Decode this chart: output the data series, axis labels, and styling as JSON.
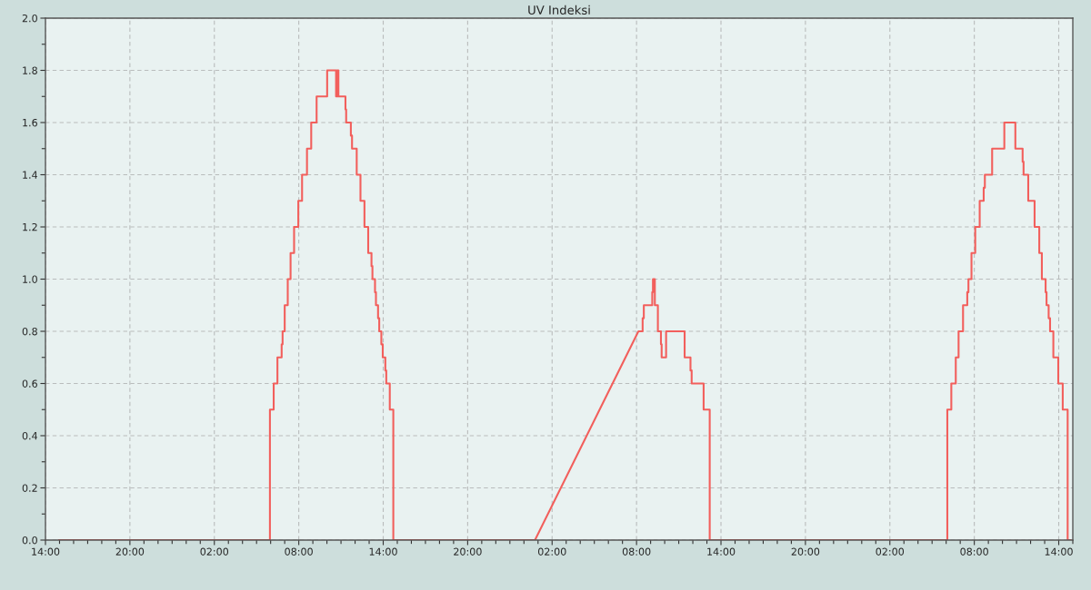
{
  "chart_data": {
    "type": "line",
    "title": "UV Indeksi",
    "xlim": [
      "2000-01-01T14:00",
      "2000-01-04T15:00"
    ],
    "xticks": [
      {
        "value": "2000-01-01T14:00",
        "label": "14:00"
      },
      {
        "value": "2000-01-01T15:00",
        "label": null
      },
      {
        "value": "2000-01-01T16:00",
        "label": null
      },
      {
        "value": "2000-01-01T17:00",
        "label": null
      },
      {
        "value": "2000-01-01T18:00",
        "label": null
      },
      {
        "value": "2000-01-01T19:00",
        "label": null
      },
      {
        "value": "2000-01-01T20:00",
        "label": "20:00"
      },
      {
        "value": "2000-01-01T21:00",
        "label": null
      },
      {
        "value": "2000-01-01T22:00",
        "label": null
      },
      {
        "value": "2000-01-01T23:00",
        "label": null
      },
      {
        "value": "2000-01-02T00:00",
        "label": null
      },
      {
        "value": "2000-01-02T01:00",
        "label": null
      },
      {
        "value": "2000-01-02T02:00",
        "label": "02:00"
      },
      {
        "value": "2000-01-02T03:00",
        "label": null
      },
      {
        "value": "2000-01-02T04:00",
        "label": null
      },
      {
        "value": "2000-01-02T05:00",
        "label": null
      },
      {
        "value": "2000-01-02T06:00",
        "label": null
      },
      {
        "value": "2000-01-02T07:00",
        "label": null
      },
      {
        "value": "2000-01-02T08:00",
        "label": "08:00"
      },
      {
        "value": "2000-01-02T09:00",
        "label": null
      },
      {
        "value": "2000-01-02T10:00",
        "label": null
      },
      {
        "value": "2000-01-02T11:00",
        "label": null
      },
      {
        "value": "2000-01-02T12:00",
        "label": null
      },
      {
        "value": "2000-01-02T13:00",
        "label": null
      },
      {
        "value": "2000-01-02T14:00",
        "label": "14:00"
      },
      {
        "value": "2000-01-02T15:00",
        "label": null
      },
      {
        "value": "2000-01-02T16:00",
        "label": null
      },
      {
        "value": "2000-01-02T17:00",
        "label": null
      },
      {
        "value": "2000-01-02T18:00",
        "label": null
      },
      {
        "value": "2000-01-02T19:00",
        "label": null
      },
      {
        "value": "2000-01-02T20:00",
        "label": "20:00"
      },
      {
        "value": "2000-01-02T21:00",
        "label": null
      },
      {
        "value": "2000-01-02T22:00",
        "label": null
      },
      {
        "value": "2000-01-02T23:00",
        "label": null
      },
      {
        "value": "2000-01-03T00:00",
        "label": null
      },
      {
        "value": "2000-01-03T01:00",
        "label": null
      },
      {
        "value": "2000-01-03T02:00",
        "label": "02:00"
      },
      {
        "value": "2000-01-03T03:00",
        "label": null
      },
      {
        "value": "2000-01-03T04:00",
        "label": null
      },
      {
        "value": "2000-01-03T05:00",
        "label": null
      },
      {
        "value": "2000-01-03T06:00",
        "label": null
      },
      {
        "value": "2000-01-03T07:00",
        "label": null
      },
      {
        "value": "2000-01-03T08:00",
        "label": "08:00"
      },
      {
        "value": "2000-01-03T09:00",
        "label": null
      },
      {
        "value": "2000-01-03T10:00",
        "label": null
      },
      {
        "value": "2000-01-03T11:00",
        "label": null
      },
      {
        "value": "2000-01-03T12:00",
        "label": null
      },
      {
        "value": "2000-01-03T13:00",
        "label": null
      },
      {
        "value": "2000-01-03T14:00",
        "label": "14:00"
      },
      {
        "value": "2000-01-03T15:00",
        "label": null
      },
      {
        "value": "2000-01-03T16:00",
        "label": null
      },
      {
        "value": "2000-01-03T17:00",
        "label": null
      },
      {
        "value": "2000-01-03T18:00",
        "label": null
      },
      {
        "value": "2000-01-03T19:00",
        "label": null
      },
      {
        "value": "2000-01-03T20:00",
        "label": "20:00"
      },
      {
        "value": "2000-01-03T21:00",
        "label": null
      },
      {
        "value": "2000-01-03T22:00",
        "label": null
      },
      {
        "value": "2000-01-03T23:00",
        "label": null
      },
      {
        "value": "2000-01-04T00:00",
        "label": null
      },
      {
        "value": "2000-01-04T01:00",
        "label": null
      },
      {
        "value": "2000-01-04T02:00",
        "label": "02:00"
      },
      {
        "value": "2000-01-04T03:00",
        "label": null
      },
      {
        "value": "2000-01-04T04:00",
        "label": null
      },
      {
        "value": "2000-01-04T05:00",
        "label": null
      },
      {
        "value": "2000-01-04T06:00",
        "label": null
      },
      {
        "value": "2000-01-04T07:00",
        "label": null
      },
      {
        "value": "2000-01-04T08:00",
        "label": "08:00"
      },
      {
        "value": "2000-01-04T09:00",
        "label": null
      },
      {
        "value": "2000-01-04T10:00",
        "label": null
      },
      {
        "value": "2000-01-04T11:00",
        "label": null
      },
      {
        "value": "2000-01-04T12:00",
        "label": null
      },
      {
        "value": "2000-01-04T13:00",
        "label": null
      },
      {
        "value": "2000-01-04T14:00",
        "label": "14:00"
      },
      {
        "value": "2000-01-04T15:00",
        "label": null
      }
    ],
    "ylim": [
      0,
      2
    ],
    "yticks": [
      {
        "value": 0,
        "label": "0.0"
      },
      {
        "value": 0.1,
        "label": null
      },
      0.2,
      {
        "value": 0.3,
        "label": null
      },
      0.4,
      {
        "value": 0.5,
        "label": null
      },
      0.6,
      {
        "value": 0.7,
        "label": null
      },
      0.8,
      {
        "value": 0.9,
        "label": null
      },
      {
        "value": 1,
        "label": "1.0"
      },
      {
        "value": 1.1,
        "label": null
      },
      1.2,
      {
        "value": 1.3,
        "label": null
      },
      1.4,
      {
        "value": 1.5,
        "label": null
      },
      1.6,
      {
        "value": 1.7,
        "label": null
      },
      1.8,
      {
        "value": 1.9,
        "label": null
      },
      {
        "value": 2,
        "label": "2.0"
      }
    ],
    "grid": true,
    "line_style": "solid",
    "series": [
      {
        "color": "#f25f5c",
        "x": [
          "2000-01-01T14:57",
          "2000-01-02T05:57",
          "2000-01-02T05:57",
          "2000-01-02T06:13",
          "2000-01-02T06:13",
          "2000-01-02T06:29",
          "2000-01-02T06:29",
          "2000-01-02T06:47",
          "2000-01-02T06:47",
          "2000-01-02T06:51",
          "2000-01-02T06:51",
          "2000-01-02T07:00",
          "2000-01-02T07:00",
          "2000-01-02T07:13",
          "2000-01-02T07:13",
          "2000-01-02T07:25",
          "2000-01-02T07:25",
          "2000-01-02T07:40",
          "2000-01-02T07:40",
          "2000-01-02T07:58",
          "2000-01-02T07:58",
          "2000-01-02T08:14",
          "2000-01-02T08:14",
          "2000-01-02T08:35",
          "2000-01-02T08:35",
          "2000-01-02T08:53",
          "2000-01-02T08:53",
          "2000-01-02T09:16",
          "2000-01-02T09:16",
          "2000-01-02T10:01",
          "2000-01-02T10:01",
          "2000-01-02T10:39",
          "2000-01-02T10:39",
          "2000-01-02T10:43",
          "2000-01-02T10:43",
          "2000-01-02T10:49",
          "2000-01-02T10:49",
          "2000-01-02T11:19",
          "2000-01-02T11:19",
          "2000-01-02T11:22",
          "2000-01-02T11:22",
          "2000-01-02T11:42",
          "2000-01-02T11:42",
          "2000-01-02T11:47",
          "2000-01-02T11:47",
          "2000-01-02T12:07",
          "2000-01-02T12:07",
          "2000-01-02T12:23",
          "2000-01-02T12:23",
          "2000-01-02T12:40",
          "2000-01-02T12:40",
          "2000-01-02T12:56",
          "2000-01-02T12:56",
          "2000-01-02T13:10",
          "2000-01-02T13:10",
          "2000-01-02T13:14",
          "2000-01-02T13:14",
          "2000-01-02T13:25",
          "2000-01-02T13:25",
          "2000-01-02T13:29",
          "2000-01-02T13:29",
          "2000-01-02T13:38",
          "2000-01-02T13:38",
          "2000-01-02T13:43",
          "2000-01-02T13:43",
          "2000-01-02T13:52",
          "2000-01-02T13:52",
          "2000-01-02T13:58",
          "2000-01-02T13:58",
          "2000-01-02T14:09",
          "2000-01-02T14:09",
          "2000-01-02T14:13",
          "2000-01-02T14:13",
          "2000-01-02T14:28",
          "2000-01-02T14:28",
          "2000-01-02T14:43",
          "2000-01-02T14:43",
          "2000-01-03T00:47",
          "2000-01-03T08:08",
          "2000-01-03T08:26",
          "2000-01-03T08:26",
          "2000-01-03T08:31",
          "2000-01-03T08:31",
          "2000-01-03T09:07",
          "2000-01-03T09:07",
          "2000-01-03T09:10",
          "2000-01-03T09:10",
          "2000-01-03T09:18",
          "2000-01-03T09:18",
          "2000-01-03T09:31",
          "2000-01-03T09:31",
          "2000-01-03T09:44",
          "2000-01-03T09:44",
          "2000-01-03T09:47",
          "2000-01-03T09:47",
          "2000-01-03T10:06",
          "2000-01-03T10:06",
          "2000-01-03T11:25",
          "2000-01-03T11:25",
          "2000-01-03T11:50",
          "2000-01-03T11:50",
          "2000-01-03T11:55",
          "2000-01-03T11:55",
          "2000-01-03T12:46",
          "2000-01-03T12:46",
          "2000-01-03T13:12",
          "2000-01-03T13:12",
          "2000-01-04T06:05",
          "2000-01-04T06:05",
          "2000-01-04T06:22",
          "2000-01-04T06:22",
          "2000-01-04T06:41",
          "2000-01-04T06:41",
          "2000-01-04T06:53",
          "2000-01-04T06:53",
          "2000-01-04T07:12",
          "2000-01-04T07:12",
          "2000-01-04T07:30",
          "2000-01-04T07:30",
          "2000-01-04T07:35",
          "2000-01-04T07:35",
          "2000-01-04T07:48",
          "2000-01-04T07:48",
          "2000-01-04T08:04",
          "2000-01-04T08:04",
          "2000-01-04T08:23",
          "2000-01-04T08:23",
          "2000-01-04T08:40",
          "2000-01-04T08:40",
          "2000-01-04T08:45",
          "2000-01-04T08:45",
          "2000-01-04T09:16",
          "2000-01-04T09:16",
          "2000-01-04T10:08",
          "2000-01-04T10:08",
          "2000-01-04T10:55",
          "2000-01-04T10:55",
          "2000-01-04T11:26",
          "2000-01-04T11:26",
          "2000-01-04T11:30",
          "2000-01-04T11:30",
          "2000-01-04T11:50",
          "2000-01-04T11:50",
          "2000-01-04T12:17",
          "2000-01-04T12:17",
          "2000-01-04T12:37",
          "2000-01-04T12:37",
          "2000-01-04T12:48",
          "2000-01-04T12:48",
          "2000-01-04T13:04",
          "2000-01-04T13:04",
          "2000-01-04T13:08",
          "2000-01-04T13:08",
          "2000-01-04T13:17",
          "2000-01-04T13:17",
          "2000-01-04T13:23",
          "2000-01-04T13:23",
          "2000-01-04T13:37",
          "2000-01-04T13:37",
          "2000-01-04T13:58",
          "2000-01-04T13:58",
          "2000-01-04T14:17",
          "2000-01-04T14:17",
          "2000-01-04T14:38",
          "2000-01-04T14:38",
          "2000-01-04T14:51"
        ],
        "values": [
          0,
          0,
          0.5,
          0.5,
          0.6,
          0.6,
          0.7,
          0.7,
          0.75,
          0.75,
          0.8,
          0.8,
          0.9,
          0.9,
          1.0,
          1.0,
          1.1,
          1.1,
          1.2,
          1.2,
          1.3,
          1.3,
          1.4,
          1.4,
          1.5,
          1.5,
          1.6,
          1.6,
          1.7,
          1.7,
          1.8,
          1.8,
          1.7,
          1.7,
          1.8,
          1.8,
          1.7,
          1.7,
          1.65,
          1.65,
          1.6,
          1.6,
          1.55,
          1.55,
          1.5,
          1.5,
          1.4,
          1.4,
          1.3,
          1.3,
          1.2,
          1.2,
          1.1,
          1.1,
          1.05,
          1.05,
          1.0,
          1.0,
          0.95,
          0.95,
          0.9,
          0.9,
          0.85,
          0.85,
          0.8,
          0.8,
          0.75,
          0.75,
          0.7,
          0.7,
          0.65,
          0.65,
          0.6,
          0.6,
          0.5,
          0.5,
          0,
          0,
          0.8,
          0.8,
          0.85,
          0.85,
          0.9,
          0.9,
          0.95,
          0.95,
          1.0,
          1.0,
          0.9,
          0.9,
          0.8,
          0.8,
          0.75,
          0.75,
          0.7,
          0.7,
          0.8,
          0.8,
          0.7,
          0.7,
          0.65,
          0.65,
          0.6,
          0.6,
          0.5,
          0.5,
          0,
          0,
          0.5,
          0.5,
          0.6,
          0.6,
          0.7,
          0.7,
          0.8,
          0.8,
          0.9,
          0.9,
          0.95,
          0.95,
          1.0,
          1.0,
          1.1,
          1.1,
          1.2,
          1.2,
          1.3,
          1.3,
          1.35,
          1.35,
          1.4,
          1.4,
          1.5,
          1.5,
          1.6,
          1.6,
          1.5,
          1.5,
          1.45,
          1.45,
          1.4,
          1.4,
          1.3,
          1.3,
          1.2,
          1.2,
          1.1,
          1.1,
          1.0,
          1.0,
          0.95,
          0.95,
          0.9,
          0.9,
          0.85,
          0.85,
          0.8,
          0.8,
          0.7,
          0.7,
          0.6,
          0.6,
          0.5,
          0.5,
          0,
          0
        ]
      }
    ]
  }
}
